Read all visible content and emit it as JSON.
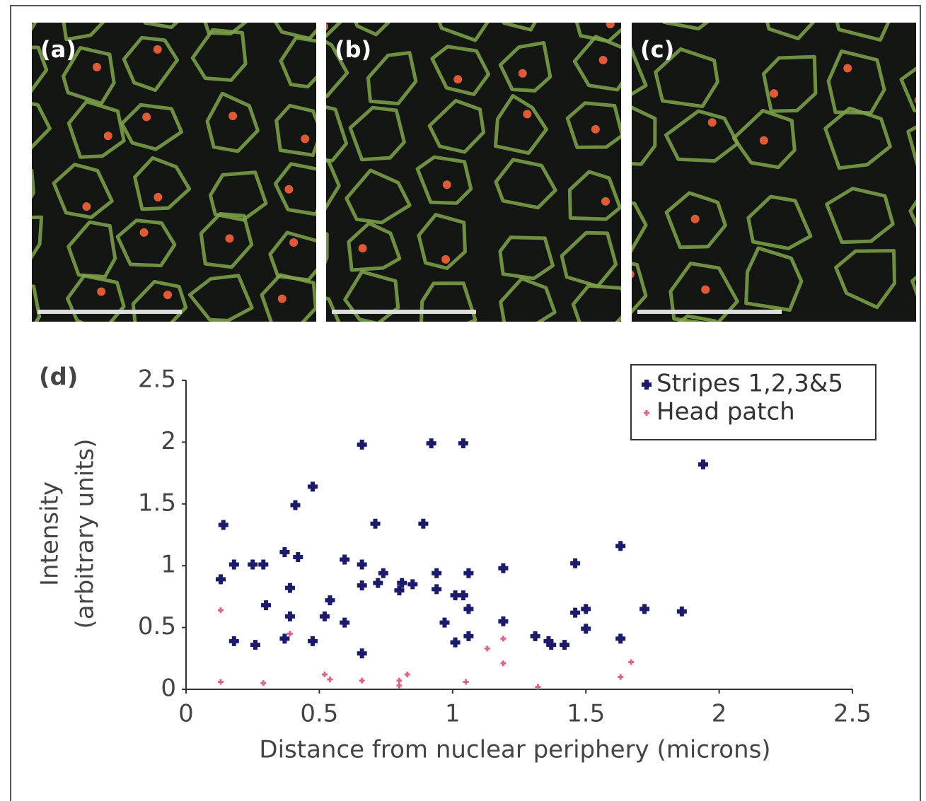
{
  "panels": [
    "(a)",
    "(b)",
    "(c)"
  ],
  "chart_data": {
    "type": "scatter",
    "panel_label": "(d)",
    "xlabel": "Distance from nuclear periphery (microns)",
    "ylabel": [
      "Intensity",
      "(arbitrary units)"
    ],
    "xlim": [
      0,
      2.5
    ],
    "ylim": [
      0,
      2.5
    ],
    "xticks": [
      0,
      0.5,
      1,
      1.5,
      2,
      2.5
    ],
    "yticks": [
      0,
      0.5,
      1,
      1.5,
      2,
      2.5
    ],
    "legend": "upper right",
    "grid": false,
    "series": [
      {
        "name": "Stripes 1,2,3&5",
        "color": "#1c1a6a",
        "x": [
          0.14,
          0.13,
          0.18,
          0.18,
          0.25,
          0.26,
          0.29,
          0.3,
          0.37,
          0.37,
          0.39,
          0.39,
          0.41,
          0.42,
          0.475,
          0.475,
          0.52,
          0.54,
          0.595,
          0.595,
          0.66,
          0.66,
          0.66,
          0.66,
          0.71,
          0.72,
          0.74,
          0.8,
          0.81,
          0.85,
          0.89,
          0.92,
          0.94,
          0.94,
          0.97,
          1.01,
          1.01,
          1.04,
          1.04,
          1.06,
          1.06,
          1.06,
          1.19,
          1.19,
          1.31,
          1.36,
          1.37,
          1.42,
          1.46,
          1.46,
          1.5,
          1.5,
          1.63,
          1.63,
          1.72,
          1.86,
          1.94
        ],
        "values": [
          1.33,
          0.89,
          1.01,
          0.39,
          1.01,
          0.36,
          1.01,
          0.68,
          1.11,
          0.41,
          0.82,
          0.59,
          1.49,
          1.07,
          1.64,
          0.39,
          0.59,
          0.72,
          1.05,
          0.54,
          1.98,
          1.01,
          0.84,
          0.29,
          1.34,
          0.86,
          0.94,
          0.8,
          0.86,
          0.85,
          1.34,
          1.99,
          0.94,
          0.81,
          0.54,
          0.76,
          0.38,
          1.99,
          0.76,
          0.65,
          0.43,
          0.94,
          0.98,
          0.55,
          0.43,
          0.39,
          0.36,
          0.36,
          1.02,
          0.62,
          0.65,
          0.49,
          1.16,
          0.41,
          0.65,
          0.63,
          1.82
        ]
      },
      {
        "name": "Head patch",
        "color": "#e0628a",
        "x": [
          0.13,
          0.13,
          0.29,
          0.39,
          0.52,
          0.54,
          0.66,
          0.8,
          0.8,
          0.83,
          1.05,
          1.13,
          1.19,
          1.19,
          1.32,
          1.63,
          1.67
        ],
        "values": [
          0.64,
          0.06,
          0.05,
          0.45,
          0.12,
          0.08,
          0.07,
          0.07,
          0.03,
          0.12,
          0.06,
          0.33,
          0.41,
          0.21,
          0.02,
          0.1,
          0.22
        ]
      }
    ]
  }
}
